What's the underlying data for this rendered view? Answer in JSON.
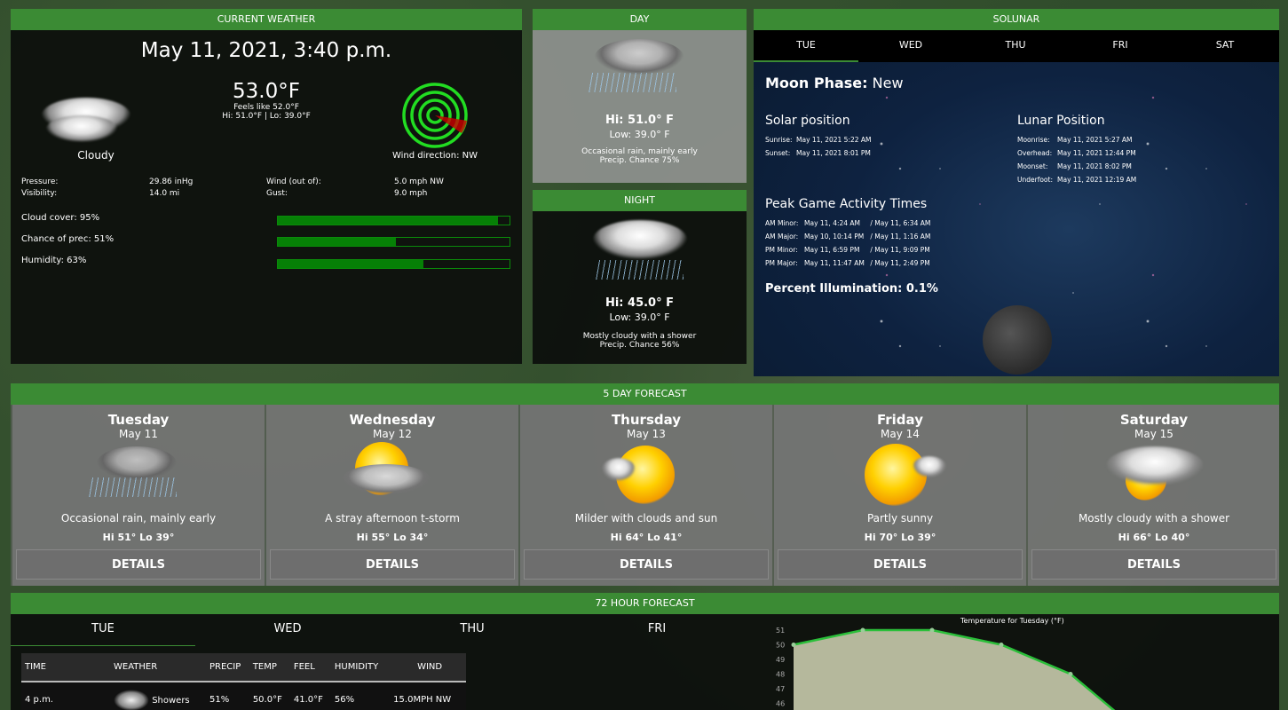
{
  "current": {
    "title": "CURRENT WEATHER",
    "datetime": "May 11, 2021, 3:40 p.m.",
    "temp": "53.0°F",
    "feels": "Feels like 52.0°F",
    "hilo": "Hi: 51.0°F | Lo: 39.0°F",
    "condition": "Cloudy",
    "icon": "cloud-icon",
    "wind_dir": "Wind direction: NW",
    "stats": [
      {
        "label": "Pressure:",
        "value": "29.86 inHg"
      },
      {
        "label": "Visibility:",
        "value": "14.0 mi"
      },
      {
        "label": "Wind (out of):",
        "value": "5.0 mph NW"
      },
      {
        "label": "Gust:",
        "value": "9.0 mph"
      }
    ],
    "bars": [
      {
        "label": "Cloud cover: 95%",
        "pct": 95
      },
      {
        "label": "Chance of prec: 51%",
        "pct": 51
      },
      {
        "label": "Humidity: 63%",
        "pct": 63
      }
    ],
    "colors": {
      "accent": "#3b8b34",
      "bar": "#068006",
      "radar": "#22dd22",
      "wind": "#cc0000"
    }
  },
  "day": {
    "title": "DAY",
    "hi": "Hi: 51.0° F",
    "low": "Low: 39.0° F",
    "desc": "Occasional rain, mainly early",
    "precip": "Precip. Chance 75%"
  },
  "night": {
    "title": "NIGHT",
    "hi": "Hi: 45.0° F",
    "low": "Low: 39.0° F",
    "desc": "Mostly cloudy with a shower",
    "precip": "Precip. Chance 56%"
  },
  "solunar": {
    "title": "SOLUNAR",
    "tabs": [
      "TUE",
      "WED",
      "THU",
      "FRI",
      "SAT"
    ],
    "moon_label": "Moon Phase:",
    "moon_phase": "New",
    "solar_title": "Solar position",
    "solar": [
      {
        "k": "Sunrise:",
        "v": "May 11, 2021 5:22 AM"
      },
      {
        "k": "Sunset:",
        "v": "May 11, 2021 8:01 PM"
      }
    ],
    "lunar_title": "Lunar Position",
    "lunar": [
      {
        "k": "Moonrise:",
        "v": "May 11, 2021 5:27 AM"
      },
      {
        "k": "Overhead:",
        "v": "May 11, 2021 12:44 PM"
      },
      {
        "k": "Moonset:",
        "v": "May 11, 2021 8:02 PM"
      },
      {
        "k": "Underfoot:",
        "v": "May 11, 2021 12:19 AM"
      }
    ],
    "peak_title": "Peak Game Activity Times",
    "peak": [
      {
        "k": "AM Minor:",
        "a": "May 11, 4:24 AM",
        "b": "May 11, 6:34 AM"
      },
      {
        "k": "AM Major:",
        "a": "May 10, 10:14 PM",
        "b": "May 11, 1:16 AM"
      },
      {
        "k": "PM Minor:",
        "a": "May 11, 6:59 PM",
        "b": "May 11, 9:09 PM"
      },
      {
        "k": "PM Major:",
        "a": "May 11, 11:47 AM",
        "b": "May 11, 2:49 PM"
      }
    ],
    "illumination": "Percent Illumination: 0.1%"
  },
  "forecast": {
    "title": "5 DAY FORECAST",
    "details": "DETAILS",
    "days": [
      {
        "day": "Tuesday",
        "date": "May 11",
        "cond": "Occasional rain, mainly early",
        "hilo": "Hi 51° Lo 39°",
        "icon": "rain-icon"
      },
      {
        "day": "Wednesday",
        "date": "May 12",
        "cond": "A stray afternoon t-storm",
        "hilo": "Hi 55° Lo 34°",
        "icon": "thunderstorm-icon"
      },
      {
        "day": "Thursday",
        "date": "May 13",
        "cond": "Milder with clouds and sun",
        "hilo": "Hi 64° Lo 41°",
        "icon": "sun-cloud-icon"
      },
      {
        "day": "Friday",
        "date": "May 14",
        "cond": "Partly sunny",
        "hilo": "Hi 70° Lo 39°",
        "icon": "partly-sunny-icon"
      },
      {
        "day": "Saturday",
        "date": "May 15",
        "cond": "Mostly cloudy with a shower",
        "hilo": "Hi 66° Lo 40°",
        "icon": "cloud-sun-shower-icon"
      }
    ]
  },
  "hourly": {
    "title": "72 HOUR FORECAST",
    "tabs": [
      "TUE",
      "WED",
      "THU",
      "FRI"
    ],
    "columns": [
      "TIME",
      "WEATHER",
      "PRECIP",
      "TEMP",
      "FEEL",
      "HUMIDITY",
      "WIND"
    ],
    "rows": [
      {
        "time": "4 p.m.",
        "weather": "Showers",
        "precip": "51%",
        "temp": "50.0°F",
        "feel": "41.0°F",
        "humidity": "56%",
        "wind": "15.0MPH NW"
      }
    ]
  },
  "chart_data": {
    "type": "area",
    "title": "Temperature for Tuesday (°F)",
    "xlabel": "",
    "ylabel": "",
    "y_ticks": [
      51,
      50,
      49,
      48,
      47,
      46
    ],
    "values": [
      50,
      51,
      51,
      50,
      48
    ],
    "grid": false,
    "fill": "#b5b89c",
    "line": "#2bbf3a"
  }
}
